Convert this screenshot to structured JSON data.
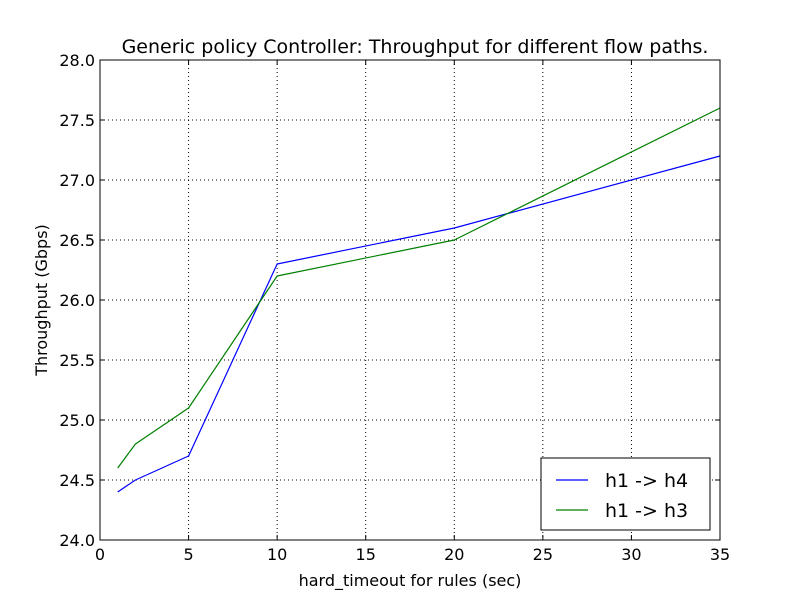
{
  "chart_data": {
    "type": "line",
    "title": "Generic policy Controller: Throughput for different flow paths.",
    "xlabel": "hard_timeout for rules (sec)",
    "ylabel": "Throughput (Gbps)",
    "xlim": [
      0,
      35
    ],
    "ylim": [
      24.0,
      28.0
    ],
    "xticks": [
      0,
      5,
      10,
      15,
      20,
      25,
      30,
      35
    ],
    "yticks": [
      24.0,
      24.5,
      25.0,
      25.5,
      26.0,
      26.5,
      27.0,
      27.5,
      28.0
    ],
    "xtick_labels": [
      "0",
      "5",
      "10",
      "15",
      "20",
      "25",
      "30",
      "35"
    ],
    "ytick_labels": [
      "24.0",
      "24.5",
      "25.0",
      "25.5",
      "26.0",
      "26.5",
      "27.0",
      "27.5",
      "28.0"
    ],
    "grid": true,
    "legend_position": "lower-right",
    "series": [
      {
        "name": "h1 -> h4",
        "color": "#0000ff",
        "x": [
          1,
          2,
          5,
          10,
          20,
          35
        ],
        "y": [
          24.4,
          24.5,
          24.7,
          26.3,
          26.6,
          27.2
        ]
      },
      {
        "name": "h1 -> h3",
        "color": "#008000",
        "x": [
          1,
          2,
          5,
          10,
          20,
          35
        ],
        "y": [
          24.6,
          24.8,
          25.1,
          26.2,
          26.5,
          27.6
        ]
      }
    ]
  }
}
